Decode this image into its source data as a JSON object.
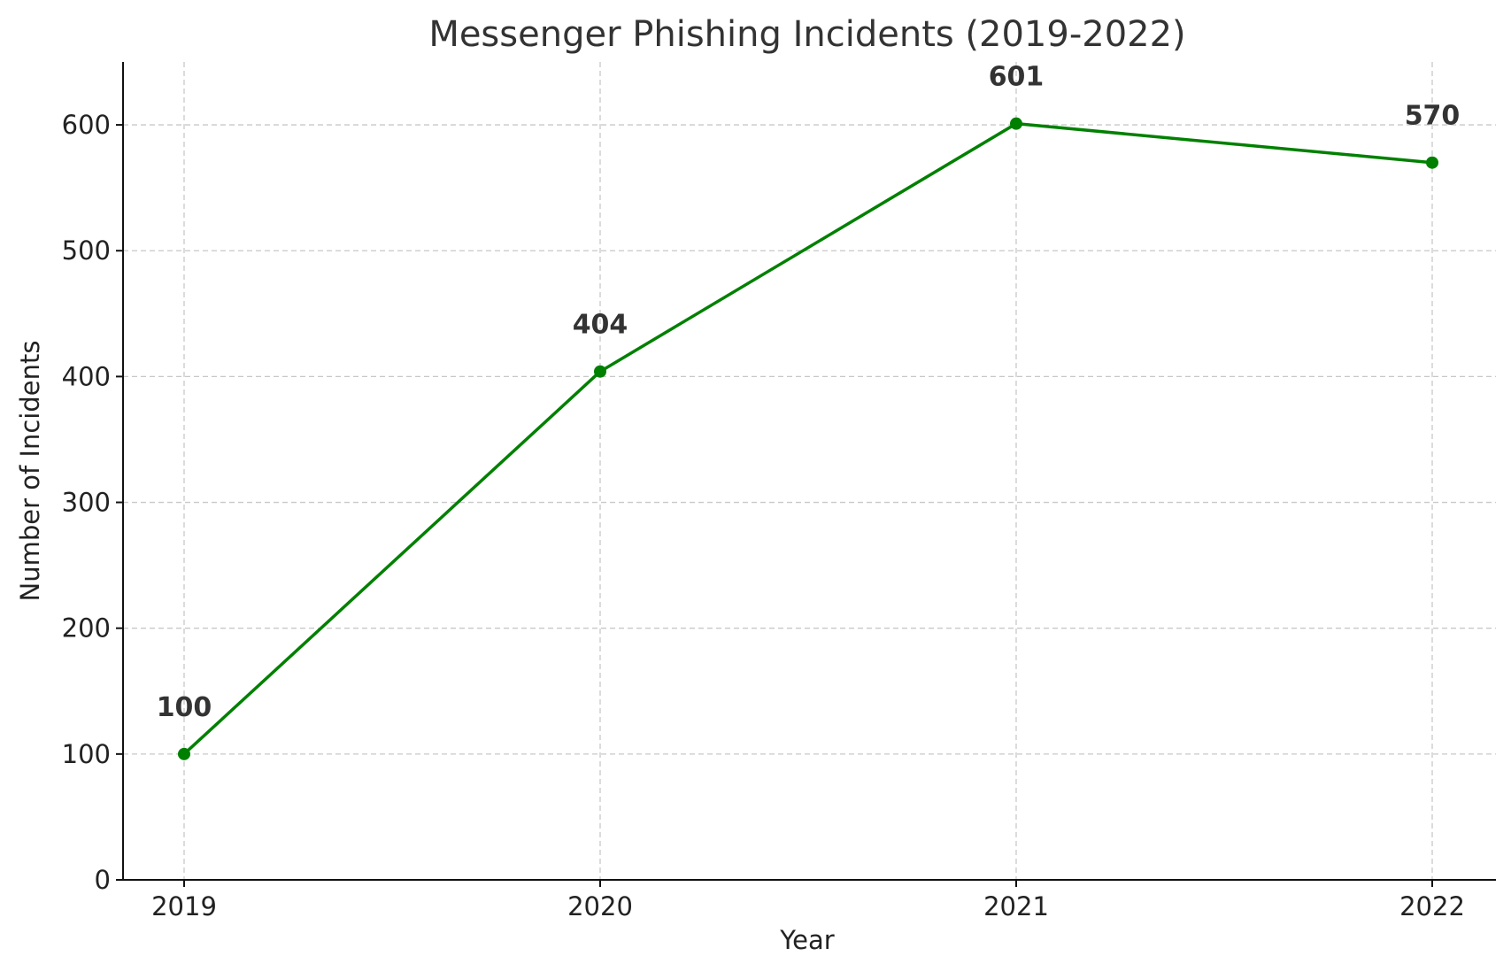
{
  "chart_data": {
    "type": "line",
    "title": "Messenger Phishing Incidents (2019-2022)",
    "xlabel": "Year",
    "ylabel": "Number of Incidents",
    "categories": [
      "2019",
      "2020",
      "2021",
      "2022"
    ],
    "series": [
      {
        "values": [
          100,
          404,
          601,
          570
        ],
        "color": "#008000"
      }
    ],
    "data_labels": [
      "100",
      "404",
      "601",
      "570"
    ],
    "ylim": [
      0,
      650
    ],
    "yticks": [
      0,
      100,
      200,
      300,
      400,
      500,
      600
    ],
    "ytick_labels": [
      "0",
      "100",
      "200",
      "300",
      "400",
      "500",
      "600"
    ],
    "grid": true,
    "marker": "circle"
  }
}
